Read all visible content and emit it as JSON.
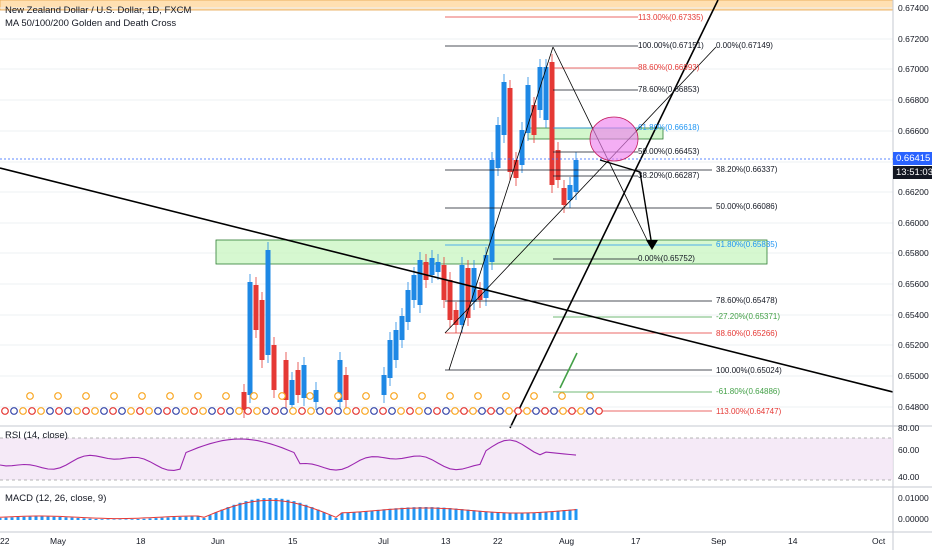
{
  "header": {
    "symbol": "New Zealand Dollar / U.S. Dollar, 1D, FXCM",
    "indicator": "MA 50/100/200 Golden and Death Cross"
  },
  "price_axis": {
    "labels": [
      "0.67400",
      "0.67200",
      "0.67000",
      "0.66800",
      "0.66600",
      "0.66400",
      "0.66200",
      "0.66000",
      "0.65800",
      "0.65600",
      "0.65400",
      "0.65200",
      "0.65000",
      "0.64800"
    ],
    "current_price": "0.66415",
    "countdown": "13:51:03",
    "current_color": "#2962ff",
    "countdown_color": "#131722"
  },
  "rsi": {
    "label": "RSI (14, close)",
    "levels": [
      "80.00",
      "60.00",
      "40.00"
    ],
    "line_color": "#9c27b0"
  },
  "macd": {
    "label": "MACD (12, 26, close, 9)",
    "levels": [
      "0.01000",
      "0.00000"
    ],
    "hist_color": "#2196f3",
    "signal_color": "#e53935"
  },
  "time_axis": {
    "labels": [
      "22",
      "May",
      "18",
      "Jun",
      "15",
      "Jul",
      "13",
      "22",
      "Aug",
      "17",
      "Sep",
      "14",
      "Oct"
    ]
  },
  "fib_upper": [
    {
      "text": "113.00%(0.67335)",
      "color": "#e53935"
    },
    {
      "text": "100.00%(0.67151)",
      "color": "#131722"
    },
    {
      "text": "88.60%(0.66993)",
      "color": "#e53935"
    },
    {
      "text": "78.60%(0.66853)",
      "color": "#131722"
    },
    {
      "text": "61.80%(0.66618)",
      "color": "#2196f3"
    },
    {
      "text": "50.00%(0.66453)",
      "color": "#131722"
    },
    {
      "text": "38.20%(0.66287)",
      "color": "#131722"
    },
    {
      "text": "0.00%(0.65752)",
      "color": "#131722"
    }
  ],
  "fib_right": [
    {
      "text": "0.00%(0.67149)",
      "color": "#131722"
    },
    {
      "text": "38.20%(0.66337)",
      "color": "#131722"
    },
    {
      "text": "50.00%(0.66086)",
      "color": "#131722"
    },
    {
      "text": "61.80%(0.65835)",
      "color": "#2196f3"
    },
    {
      "text": "78.60%(0.65478)",
      "color": "#131722"
    },
    {
      "text": "-27.20%(0.65371)",
      "color": "#43a047"
    },
    {
      "text": "88.60%(0.65266)",
      "color": "#e53935"
    },
    {
      "text": "100.00%(0.65024)",
      "color": "#131722"
    },
    {
      "text": "-61.80%(0.64886)",
      "color": "#43a047"
    },
    {
      "text": "113.00%(0.64747)",
      "color": "#e53935"
    }
  ],
  "colors": {
    "up": "#1e88e5",
    "down": "#e53935",
    "zone_fill": "#c8f5c0",
    "zone_border": "#2e7d32",
    "circle": "#ee82ee",
    "top_band": "#ffe0b2"
  }
}
